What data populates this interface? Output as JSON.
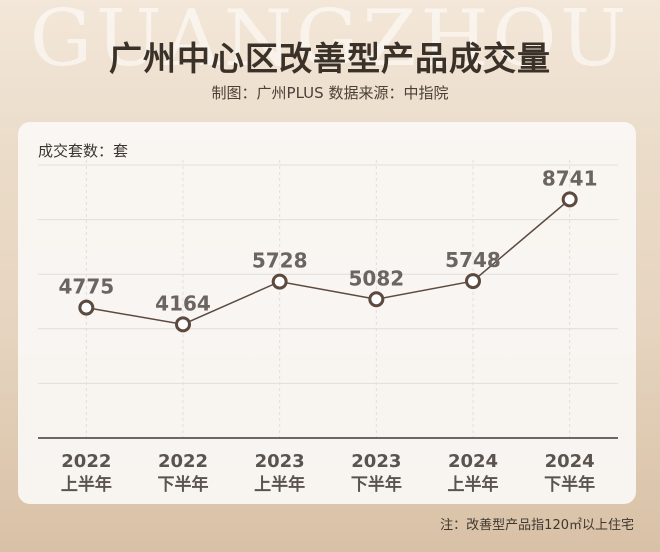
{
  "header": {
    "watermark": "GUANGZHOU",
    "title": "广州中心区改善型产品成交量",
    "subtitle": "制图：广州PLUS   数据来源：中指院"
  },
  "chart_data": {
    "type": "line",
    "title": "广州中心区改善型产品成交量",
    "ylabel": "成交套数：套",
    "x_year": [
      "2022",
      "2022",
      "2023",
      "2023",
      "2024",
      "2024"
    ],
    "x_half": [
      "上半年",
      "下半年",
      "上半年",
      "下半年",
      "上半年",
      "下半年"
    ],
    "series": [
      {
        "values": [
          4775,
          4164,
          5728,
          5082,
          5748,
          8741
        ]
      }
    ],
    "ylim": [
      0,
      10000
    ],
    "grid": true,
    "colors": {
      "line": "#5c4a3f",
      "marker_fill": "#ffffff",
      "label": "#6b6460",
      "grid": "#e2ddd8"
    }
  },
  "footer": {
    "note": "注：改善型产品指120㎡以上住宅"
  }
}
